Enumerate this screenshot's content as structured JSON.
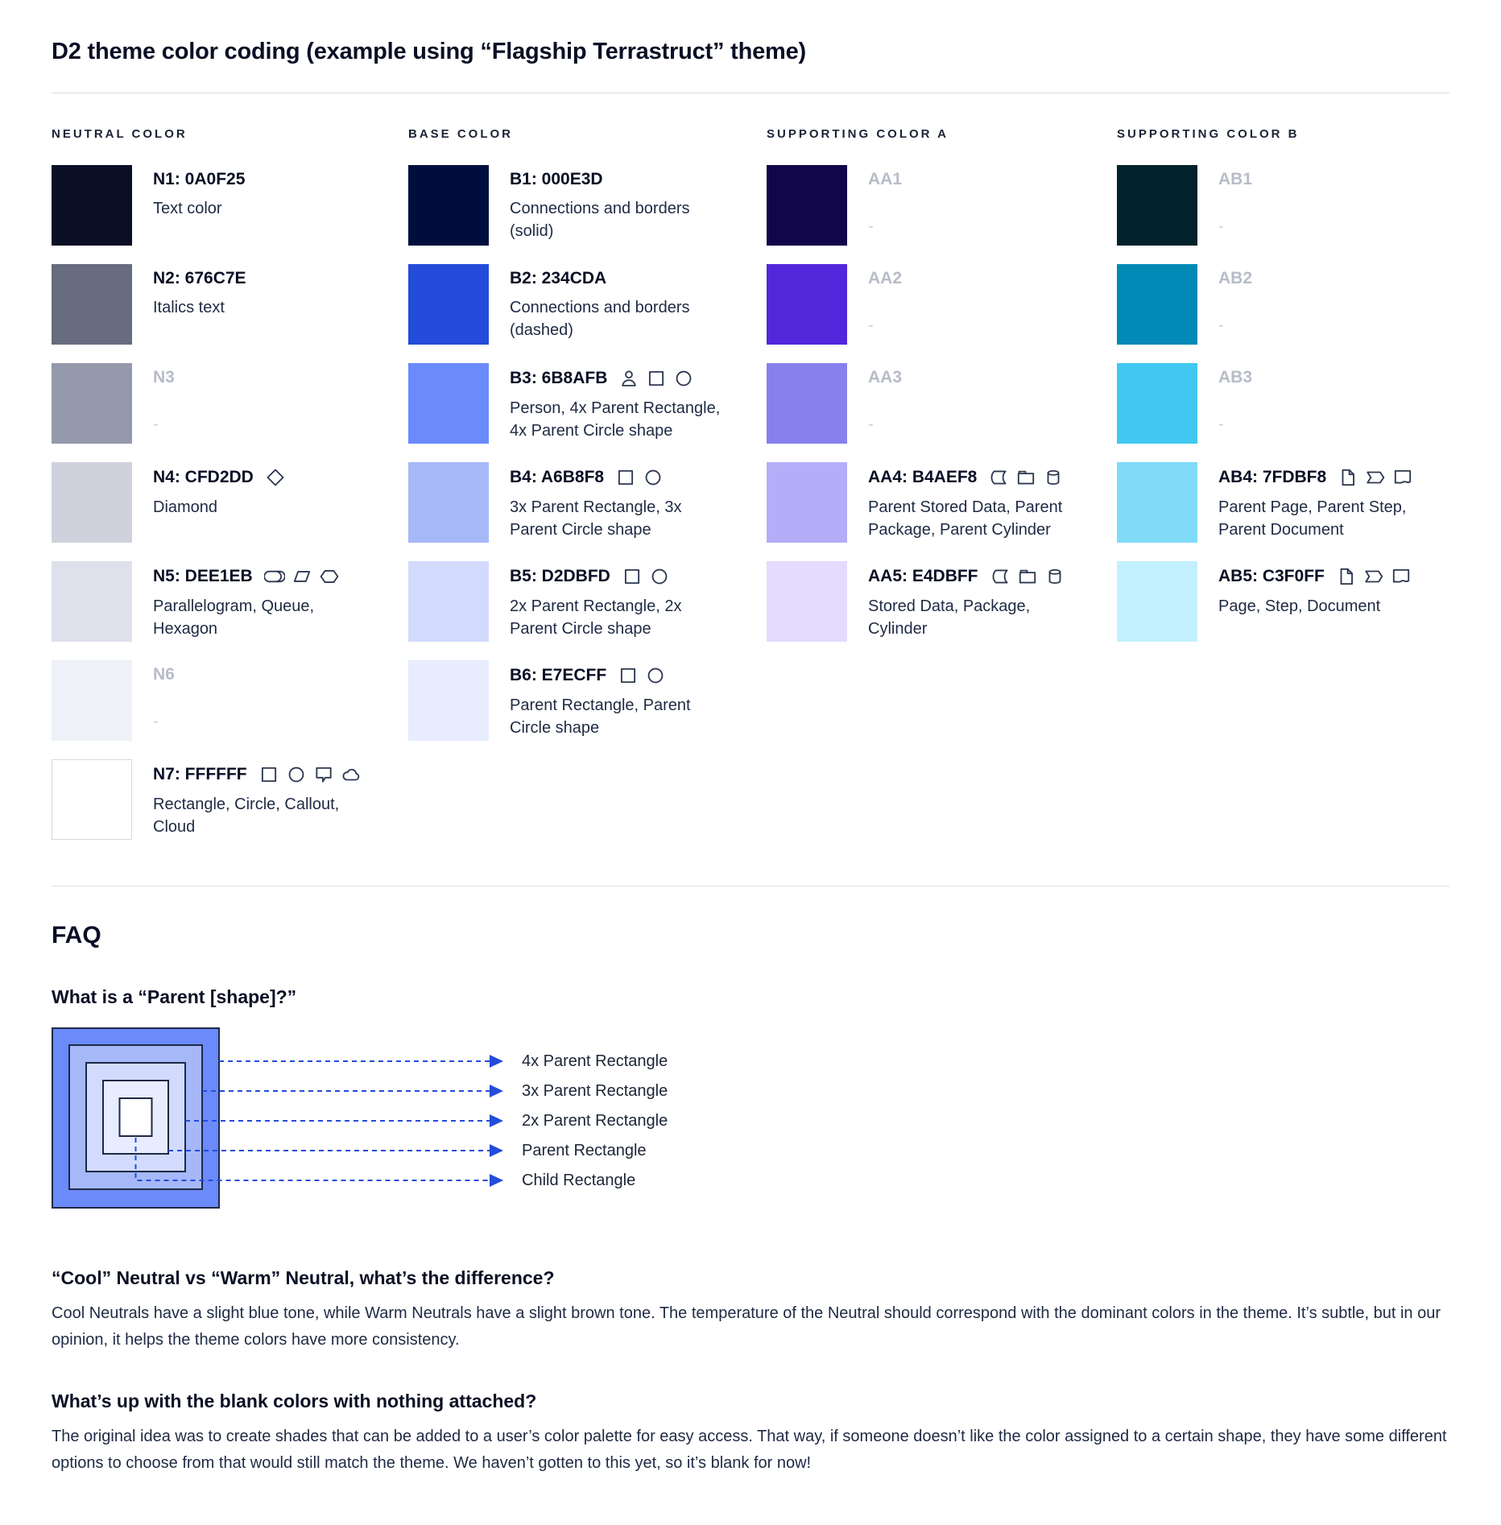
{
  "page": {
    "title": "D2 theme color coding (example using “Flagship Terrastruct” theme)"
  },
  "colors": {
    "accent_blue": "#234CDA",
    "icon_stroke": "#2C3850",
    "diagram_border": "#1D2946",
    "gray_label": "#B7BCC8"
  },
  "palette": {
    "columns": [
      {
        "header": "NEUTRAL COLOR",
        "swatches": [
          {
            "label": "N1: 0A0F25",
            "color": "#0A0F25",
            "desc": "Text color",
            "icons": [],
            "blank": false
          },
          {
            "label": "N2: 676C7E",
            "color": "#676C7E",
            "desc": "Italics text",
            "icons": [],
            "blank": false
          },
          {
            "label": "N3",
            "color": "#9499AB",
            "desc": "-",
            "icons": [],
            "blank": true
          },
          {
            "label": "N4: CFD2DD",
            "color": "#CFD2DD",
            "desc": "Diamond",
            "icons": [
              "diamond"
            ],
            "blank": false
          },
          {
            "label": "N5: DEE1EB",
            "color": "#DEE1EB",
            "desc": "Parallelogram, Queue, Hexagon",
            "icons": [
              "queue",
              "parallelogram",
              "hexagon"
            ],
            "blank": false
          },
          {
            "label": "N6",
            "color": "#EEF1F8",
            "desc": "-",
            "icons": [],
            "blank": true
          },
          {
            "label": "N7: FFFFFF",
            "color": "#FFFFFF",
            "desc": "Rectangle, Circle, Callout, Cloud",
            "icons": [
              "rectangle",
              "circle",
              "callout",
              "cloud"
            ],
            "blank": false
          }
        ]
      },
      {
        "header": "BASE COLOR",
        "swatches": [
          {
            "label": "B1: 000E3D",
            "color": "#000E3D",
            "desc": "Connections and borders (solid)",
            "icons": [],
            "blank": false
          },
          {
            "label": "B2: 234CDA",
            "color": "#234CDA",
            "desc": "Connections and borders (dashed)",
            "icons": [],
            "blank": false
          },
          {
            "label": "B3: 6B8AFB",
            "color": "#6B8AFB",
            "desc": "Person, 4x Parent Rectangle, 4x Parent Circle shape",
            "icons": [
              "person",
              "rectangle",
              "circle"
            ],
            "blank": false
          },
          {
            "label": "B4: A6B8F8",
            "color": "#A6B8F8",
            "desc": "3x Parent Rectangle, 3x Parent Circle shape",
            "icons": [
              "rectangle",
              "circle"
            ],
            "blank": false
          },
          {
            "label": "B5: D2DBFD",
            "color": "#D2DBFD",
            "desc": "2x Parent Rectangle, 2x Parent Circle shape",
            "icons": [
              "rectangle",
              "circle"
            ],
            "blank": false
          },
          {
            "label": "B6: E7ECFF",
            "color": "#E7ECFF",
            "desc": "Parent Rectangle, Parent Circle shape",
            "icons": [
              "rectangle",
              "circle"
            ],
            "blank": false
          }
        ]
      },
      {
        "header": "SUPPORTING COLOR A",
        "swatches": [
          {
            "label": "AA1",
            "color": "#11064A",
            "desc": "-",
            "icons": [],
            "blank": true
          },
          {
            "label": "AA2",
            "color": "#5226DB",
            "desc": "-",
            "icons": [],
            "blank": true
          },
          {
            "label": "AA3",
            "color": "#8781ED",
            "desc": "-",
            "icons": [],
            "blank": true
          },
          {
            "label": "AA4: B4AEF8",
            "color": "#B4AEF8",
            "desc": "Parent Stored Data, Parent Package,  Parent Cylinder",
            "icons": [
              "stored-data",
              "package",
              "cylinder"
            ],
            "blank": false
          },
          {
            "label": "AA5: E4DBFF",
            "color": "#E4DBFF",
            "desc": "Stored Data, Package, Cylinder",
            "icons": [
              "stored-data",
              "package",
              "cylinder"
            ],
            "blank": false
          }
        ]
      },
      {
        "header": "SUPPORTING COLOR B",
        "swatches": [
          {
            "label": "AB1",
            "color": "#02222B",
            "desc": "-",
            "icons": [],
            "blank": true
          },
          {
            "label": "AB2",
            "color": "#0289B5",
            "desc": "-",
            "icons": [],
            "blank": true
          },
          {
            "label": "AB3",
            "color": "#41C7F0",
            "desc": "-",
            "icons": [],
            "blank": true
          },
          {
            "label": "AB4: 7FDBF8",
            "color": "#7FDBF8",
            "desc": "Parent Page, Parent Step, Parent Document",
            "icons": [
              "page",
              "step",
              "document"
            ],
            "blank": false
          },
          {
            "label": "AB5: C3F0FF",
            "color": "#C3F0FF",
            "desc": "Page, Step, Document",
            "icons": [
              "page",
              "step",
              "document"
            ],
            "blank": false
          }
        ]
      }
    ]
  },
  "faq": {
    "heading": "FAQ",
    "q_parent": "What is a “Parent [shape]?”",
    "diagram": {
      "labels": [
        "4x Parent Rectangle",
        "3x Parent Rectangle",
        "2x Parent Rectangle",
        "Parent Rectangle",
        "Child Rectangle"
      ],
      "colors": [
        "#6B8AFB",
        "#A6B8F8",
        "#D2DBFD",
        "#E7ECFF",
        "#FFFFFF"
      ]
    },
    "q_cool": "“Cool” Neutral vs “Warm” Neutral, what’s the difference?",
    "a_cool": "Cool Neutrals have a slight blue tone, while Warm Neutrals have a slight brown tone. The temperature of the Neutral should correspond with the dominant colors in the theme. It’s subtle, but in our opinion, it helps the theme colors have more consistency.",
    "q_blank": "What’s up with the blank colors with nothing attached?",
    "a_blank": "The original idea was to create shades that can be added to a user’s color palette for easy access. That way, if someone doesn’t like the color assigned to a certain shape, they have some different options to choose from that would still match the theme. We haven’t gotten to this yet, so it’s blank for now!"
  }
}
